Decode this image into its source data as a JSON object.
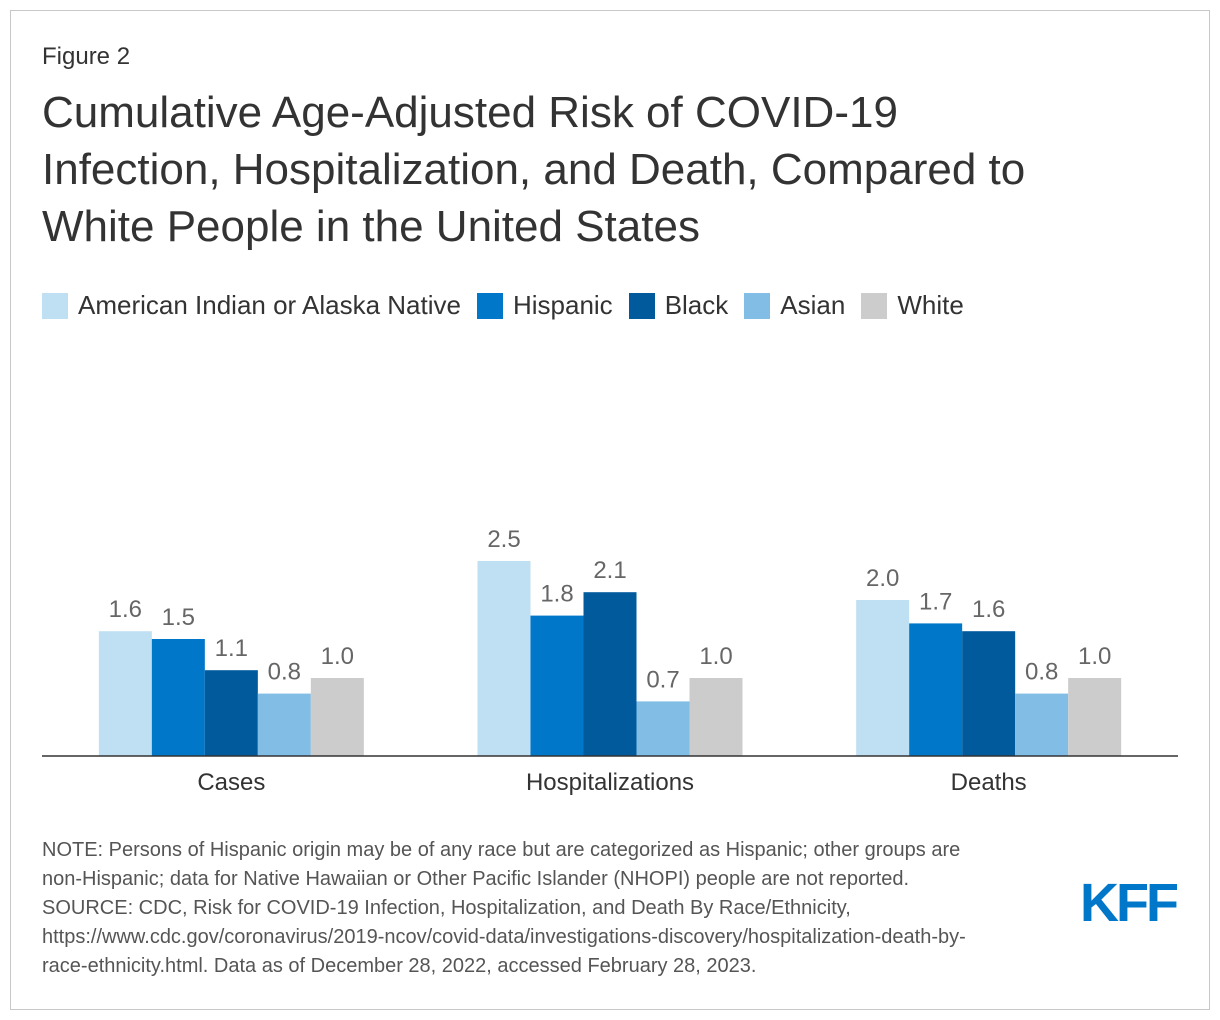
{
  "chart_data": {
    "type": "bar",
    "figure_label": "Figure 2",
    "title": [
      "Cumulative Age-Adjusted Risk of COVID-19",
      "Infection, Hospitalization, and Death, Compared to",
      "White People in the United States"
    ],
    "categories": [
      "Cases",
      "Hospitalizations",
      "Deaths"
    ],
    "series": [
      {
        "name": "American Indian or Alaska Native",
        "color": "#bfdff2",
        "values": [
          1.6,
          2.5,
          2.0
        ],
        "value_labels": [
          "1.6",
          "2.5",
          "2.0"
        ]
      },
      {
        "name": "Hispanic",
        "color": "#0077c8",
        "values": [
          1.5,
          1.8,
          1.7
        ],
        "value_labels": [
          "1.5",
          "1.8",
          "1.7"
        ]
      },
      {
        "name": "Black",
        "color": "#005a9c",
        "values": [
          1.1,
          2.1,
          1.6
        ],
        "value_labels": [
          "1.1",
          "2.1",
          "1.6"
        ]
      },
      {
        "name": "Asian",
        "color": "#82bde5",
        "values": [
          0.8,
          0.7,
          0.8
        ],
        "value_labels": [
          "0.8",
          "0.7",
          "0.8"
        ]
      },
      {
        "name": "White",
        "color": "#cccccc",
        "values": [
          1,
          1,
          1
        ],
        "value_labels": [
          "1.0",
          "1.0",
          "1.0"
        ]
      }
    ],
    "ylim": [
      0,
      3
    ],
    "legend": "top-left",
    "notes": [
      "NOTE: Persons of Hispanic origin may be of any race but are categorized as Hispanic; other groups are",
      "non-Hispanic; data for Native Hawaiian or Other Pacific Islander (NHOPI) people are not reported.",
      "SOURCE: CDC, Risk for COVID-19 Infection, Hospitalization, and Death By Race/Ethnicity,",
      "https://www.cdc.gov/coronavirus/2019-ncov/covid-data/investigations-discovery/hospitalization-death-by-",
      "race-ethnicity.html. Data as of December 28, 2022, accessed February 28, 2023."
    ],
    "logo": "KFF"
  }
}
